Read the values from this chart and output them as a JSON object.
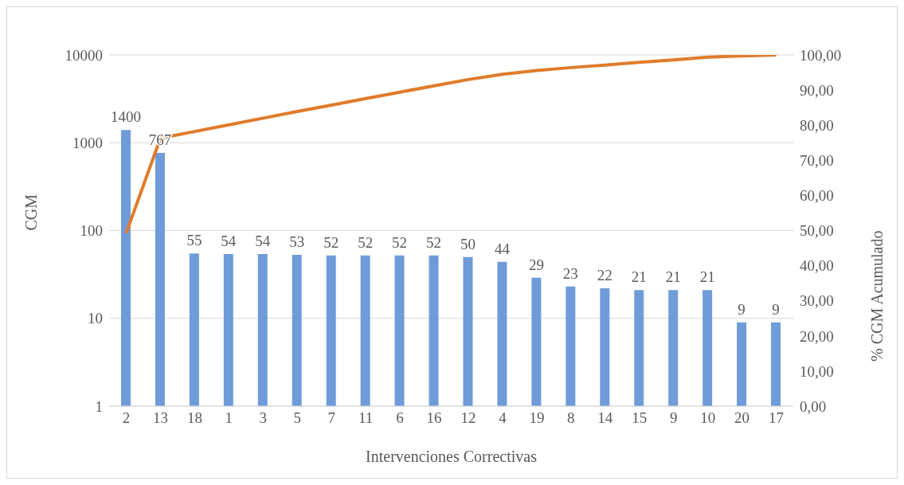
{
  "chart_data": {
    "type": "bar",
    "xlabel": "Intervenciones Correctivas",
    "ylabel": "CGM",
    "y2label": "% CGM Acumulado",
    "categories": [
      "2",
      "13",
      "18",
      "1",
      "3",
      "5",
      "7",
      "11",
      "6",
      "16",
      "12",
      "4",
      "19",
      "8",
      "14",
      "15",
      "9",
      "10",
      "20",
      "17"
    ],
    "series": [
      {
        "color": "#6f9bd9",
        "values": [
          1400,
          767,
          55,
          54,
          54,
          53,
          52,
          52,
          52,
          52,
          50,
          44,
          29,
          23,
          22,
          21,
          21,
          21,
          9,
          9
        ],
        "value_labels": [
          "1400",
          "767",
          "55",
          "54",
          "54",
          "53",
          "52",
          "52",
          "52",
          "52",
          "50",
          "44",
          "29",
          "23",
          "22",
          "21",
          "21",
          "21",
          "9",
          "9"
        ]
      },
      {
        "type": "line",
        "axis": "y2",
        "color": "#e07b2a",
        "values": [
          49.3,
          76.3,
          78.2,
          80.1,
          82.0,
          83.9,
          85.7,
          87.6,
          89.4,
          91.2,
          93.0,
          94.5,
          95.6,
          96.4,
          97.1,
          97.9,
          98.6,
          99.4,
          99.7,
          100.0
        ]
      }
    ],
    "log": "y",
    "ylim": [
      1,
      10000
    ],
    "yticks": [
      1,
      10,
      100,
      1000,
      10000
    ],
    "y2lim": [
      0,
      100
    ],
    "y2ticks": [
      {
        "value": 0,
        "label": "0,00"
      },
      {
        "value": 10,
        "label": "10,00"
      },
      {
        "value": 20,
        "label": "20,00"
      },
      {
        "value": 30,
        "label": "30,00"
      },
      {
        "value": 40,
        "label": "40,00"
      },
      {
        "value": 50,
        "label": "50,00"
      },
      {
        "value": 60,
        "label": "60,00"
      },
      {
        "value": 70,
        "label": "70,00"
      },
      {
        "value": 80,
        "label": "80,00"
      },
      {
        "value": 90,
        "label": "90,00"
      },
      {
        "value": 100,
        "label": "100,00"
      }
    ],
    "grid": "y",
    "legend": false,
    "marker": "none",
    "line_style": "solid"
  }
}
